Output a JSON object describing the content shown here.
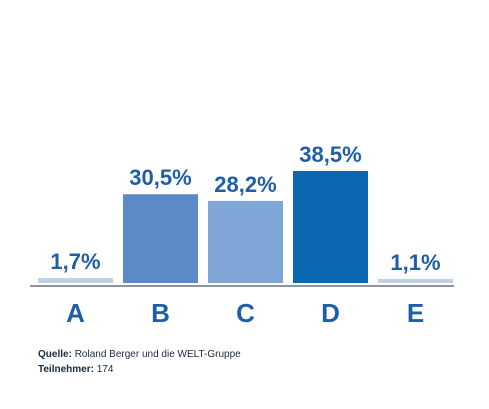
{
  "chart_data": {
    "type": "bar",
    "categories": [
      "A",
      "B",
      "C",
      "D",
      "E"
    ],
    "values": [
      1.7,
      30.5,
      28.2,
      38.5,
      1.1
    ],
    "value_labels": [
      "1,7%",
      "30,5%",
      "28,2%",
      "38,5%",
      "1,1%"
    ],
    "ylim": [
      0,
      40
    ],
    "grid": false,
    "colors": [
      "#bfd0e6",
      "#5b8ac6",
      "#7fa6d6",
      "#0b67b1",
      "#bfd0e6"
    ],
    "label_color": "#1f5ea8"
  },
  "footer": {
    "source_label": "Quelle:",
    "source_text": "Roland Berger und die WELT-Gruppe",
    "participants_label": "Teilnehmer:",
    "participants_text": "174"
  }
}
